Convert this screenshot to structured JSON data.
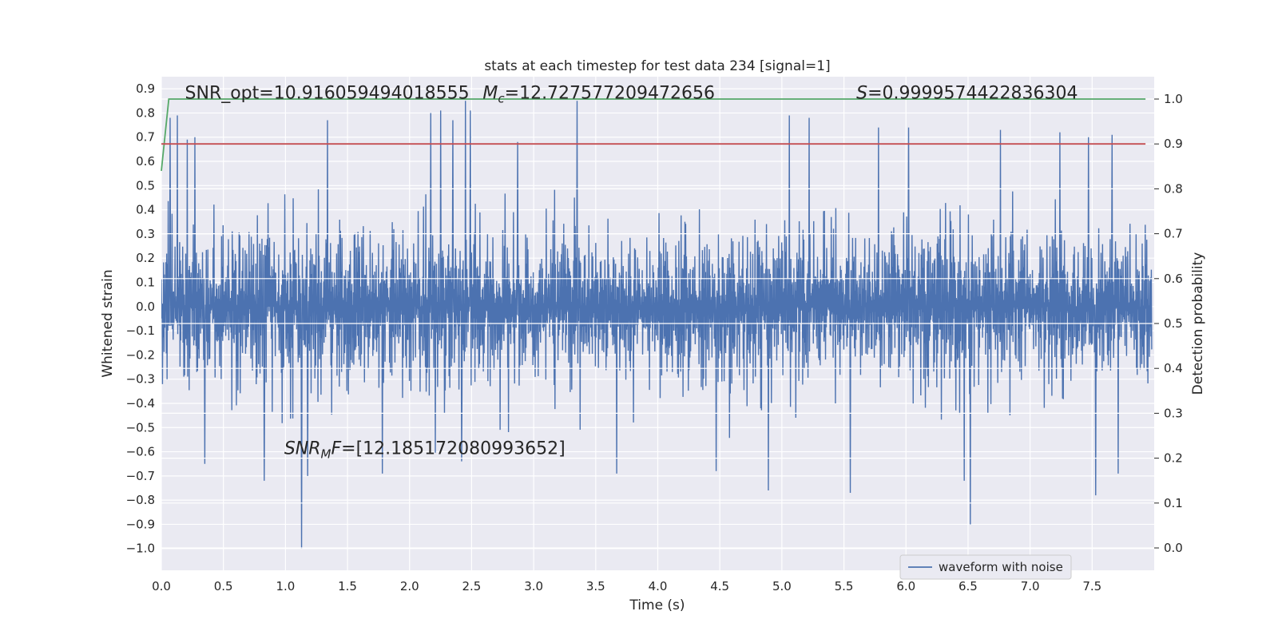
{
  "chart_data": {
    "type": "line",
    "title": "stats at each timestep for test data 234 [signal=1]",
    "xlabel": "Time (s)",
    "ylabel_left": "Whitened strain",
    "ylabel_right": "Detection probability",
    "xlim": [
      0.0,
      8.0
    ],
    "ylim_left": [
      -1.09,
      0.95
    ],
    "ylim_right": [
      0.0,
      1.0
    ],
    "x_ticks": [
      0.0,
      0.5,
      1.0,
      1.5,
      2.0,
      2.5,
      3.0,
      3.5,
      4.0,
      4.5,
      5.0,
      5.5,
      6.0,
      6.5,
      7.0,
      7.5
    ],
    "x_tick_labels": [
      "0.0",
      "0.5",
      "1.0",
      "1.5",
      "2.0",
      "2.5",
      "3.0",
      "3.5",
      "4.0",
      "4.5",
      "5.0",
      "5.5",
      "6.0",
      "6.5",
      "7.0",
      "7.5"
    ],
    "y_left_ticks": [
      0.9,
      0.8,
      0.7,
      0.6,
      0.5,
      0.4,
      0.3,
      0.2,
      0.1,
      0.0,
      -0.1,
      -0.2,
      -0.3,
      -0.4,
      -0.5,
      -0.6,
      -0.7,
      -0.8,
      -0.9,
      -1.0
    ],
    "y_left_tick_labels": [
      "0.9",
      "0.8",
      "0.7",
      "0.6",
      "0.5",
      "0.4",
      "0.3",
      "0.2",
      "0.1",
      "0.0",
      "−0.1",
      "−0.2",
      "−0.3",
      "−0.4",
      "−0.5",
      "−0.6",
      "−0.7",
      "−0.8",
      "−0.9",
      "−1.0"
    ],
    "y_right_ticks": [
      1.0,
      0.9,
      0.8,
      0.7,
      0.6,
      0.5,
      0.4,
      0.3,
      0.2,
      0.1,
      0.0
    ],
    "y_right_tick_labels": [
      "1.0",
      "0.9",
      "0.8",
      "0.7",
      "0.6",
      "0.5",
      "0.4",
      "0.3",
      "0.2",
      "0.1",
      "0.0"
    ],
    "grid": true,
    "legend": {
      "position": "lower-right",
      "entries": [
        "waveform with noise"
      ]
    },
    "series": [
      {
        "name": "waveform with noise",
        "axis": "left",
        "color": "#4c72b0",
        "noise_envelope": [
          -0.35,
          0.35
        ],
        "peaks": [
          {
            "x": 0.07,
            "y": 0.78
          },
          {
            "x": 0.13,
            "y": 0.79
          },
          {
            "x": 0.21,
            "y": 0.69
          },
          {
            "x": 0.27,
            "y": 0.7
          },
          {
            "x": 1.13,
            "y": 0.77
          },
          {
            "x": 1.34,
            "y": 0.77
          },
          {
            "x": 2.17,
            "y": 0.8
          },
          {
            "x": 2.25,
            "y": 0.81
          },
          {
            "x": 2.35,
            "y": 0.77
          },
          {
            "x": 2.45,
            "y": 0.85
          },
          {
            "x": 2.49,
            "y": 0.81
          },
          {
            "x": 2.87,
            "y": 0.68
          },
          {
            "x": 3.35,
            "y": 0.85
          },
          {
            "x": 5.06,
            "y": 0.79
          },
          {
            "x": 5.22,
            "y": 0.78
          },
          {
            "x": 5.78,
            "y": 0.74
          },
          {
            "x": 6.02,
            "y": 0.74
          },
          {
            "x": 6.76,
            "y": 0.73
          },
          {
            "x": 7.24,
            "y": 0.72
          },
          {
            "x": 7.47,
            "y": 0.7
          },
          {
            "x": 7.66,
            "y": 0.71
          },
          {
            "x": 0.35,
            "y": -0.65
          },
          {
            "x": 0.83,
            "y": -0.72
          },
          {
            "x": 1.13,
            "y": -1.0
          },
          {
            "x": 1.18,
            "y": -0.7
          },
          {
            "x": 1.78,
            "y": -0.69
          },
          {
            "x": 2.42,
            "y": -0.64
          },
          {
            "x": 3.67,
            "y": -0.69
          },
          {
            "x": 4.47,
            "y": -0.68
          },
          {
            "x": 4.89,
            "y": -0.76
          },
          {
            "x": 5.55,
            "y": -0.77
          },
          {
            "x": 6.47,
            "y": -0.72
          },
          {
            "x": 6.52,
            "y": -0.9
          },
          {
            "x": 7.53,
            "y": -0.78
          },
          {
            "x": 7.71,
            "y": -0.69
          }
        ]
      },
      {
        "name": "",
        "axis": "right",
        "color": "#55a868",
        "x": [
          0.0,
          0.06,
          7.93
        ],
        "y": [
          0.84,
          1.0,
          1.0
        ]
      },
      {
        "name": "",
        "axis": "right",
        "color": "#c44e52",
        "x": [
          0.0,
          7.93
        ],
        "y": [
          0.9,
          0.9
        ]
      }
    ],
    "annotations": [
      {
        "id": "snr_opt",
        "text": "SNR_opt=10.916059494018555",
        "x": 0.19,
        "y": 0.86
      },
      {
        "id": "mc_sym",
        "text": "M",
        "sub": "c",
        "rest": "=12.727577209472656",
        "x": 2.59,
        "y": 0.86
      },
      {
        "id": "s_val",
        "sym": "S",
        "rest": "=0.9999574422836304",
        "x": 5.6,
        "y": 0.86
      },
      {
        "id": "snr_mf",
        "sym": "SNR",
        "sub": "M",
        "sym2": "F",
        "rest": "=[12.185172080993652]",
        "x": 0.99,
        "y": -0.61
      }
    ]
  }
}
